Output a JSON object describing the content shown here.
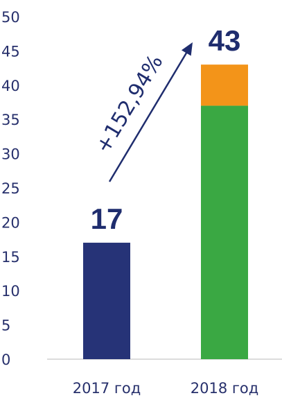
{
  "chart_data": {
    "type": "bar",
    "stacked": true,
    "categories": [
      "2017 год",
      "2018 год"
    ],
    "segments": [
      [
        {
          "value": 17,
          "color": "#263377"
        }
      ],
      [
        {
          "value": 37,
          "color": "#3aa843"
        },
        {
          "value": 6,
          "color": "#f39419"
        }
      ]
    ],
    "totals": [
      17,
      43
    ],
    "total_labels": [
      "17",
      "43"
    ],
    "ylim": [
      0,
      50
    ],
    "yticks": [
      "0",
      "5",
      "10",
      "15",
      "20",
      "25",
      "30",
      "35",
      "40",
      "45",
      "50"
    ],
    "annotation": {
      "text": "+152,94%",
      "color": "#1f2d6e"
    },
    "grid": false,
    "legend": "none"
  }
}
